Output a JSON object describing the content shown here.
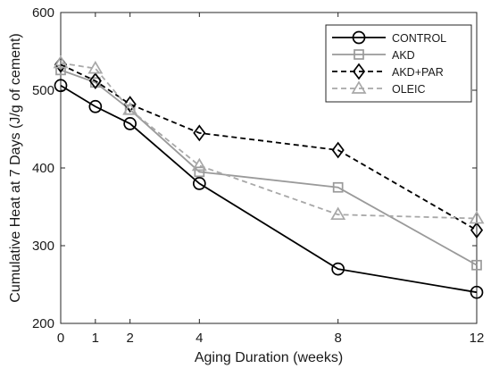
{
  "chart_data": {
    "type": "line",
    "title": "",
    "xlabel": "Aging Duration (weeks)",
    "ylabel": "Cumulative Heat at 7 Days (J/g of cement)",
    "x_ticks": [
      0,
      1,
      2,
      4,
      8,
      12
    ],
    "y_ticks": [
      200,
      300,
      400,
      500,
      600
    ],
    "xlim": [
      0,
      12
    ],
    "ylim": [
      200,
      600
    ],
    "grid": false,
    "legend_position": "top-right",
    "series": [
      {
        "name": "CONTROL",
        "x": [
          0,
          1,
          2,
          4,
          8,
          12
        ],
        "y": [
          506,
          479,
          457,
          380,
          270,
          240
        ],
        "color": "#000000",
        "dash": "solid",
        "marker": "circle"
      },
      {
        "name": "AKD",
        "x": [
          0,
          1,
          2,
          4,
          8,
          12
        ],
        "y": [
          526,
          510,
          475,
          395,
          375,
          275
        ],
        "color": "#9a9a9a",
        "dash": "solid",
        "marker": "square"
      },
      {
        "name": "AKD+PAR",
        "x": [
          0,
          1,
          2,
          4,
          8,
          12
        ],
        "y": [
          533,
          512,
          482,
          445,
          423,
          320
        ],
        "color": "#000000",
        "dash": "dashed",
        "marker": "diamond"
      },
      {
        "name": "OLEIC",
        "x": [
          0,
          1,
          2,
          4,
          8,
          12
        ],
        "y": [
          535,
          528,
          475,
          403,
          340,
          335
        ],
        "color": "#a8a8a8",
        "dash": "dashed",
        "marker": "triangle"
      }
    ]
  }
}
